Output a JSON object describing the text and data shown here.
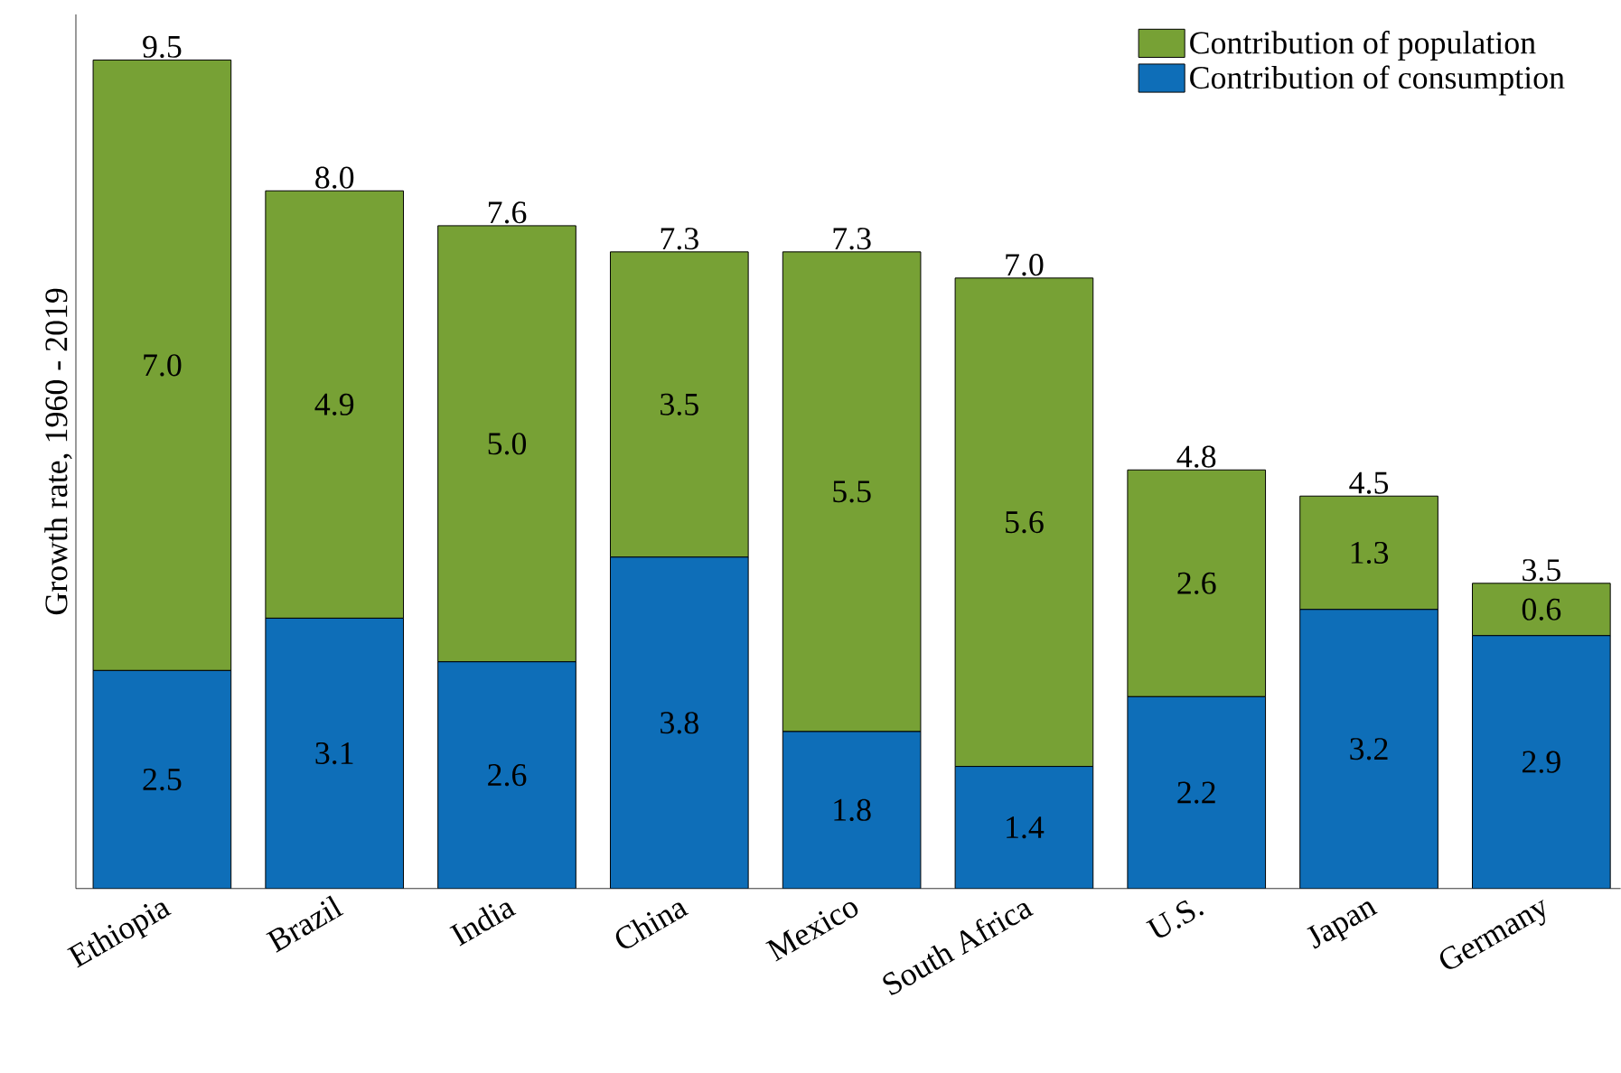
{
  "chart_data": {
    "type": "bar",
    "stacked": true,
    "ylabel": "Growth rate, 1960 - 2019",
    "categories": [
      "Ethiopia",
      "Brazil",
      "India",
      "China",
      "Mexico",
      "South Africa",
      "U.S.",
      "Japan",
      "Germany"
    ],
    "series": [
      {
        "name": "Contribution of consumption",
        "color": "#0e6eb8",
        "values": [
          2.5,
          3.1,
          2.6,
          3.8,
          1.8,
          1.4,
          2.2,
          3.2,
          2.9
        ],
        "value_labels": [
          "2.5",
          "3.1",
          "2.6",
          "3.8",
          "1.8",
          "1.4",
          "2.2",
          "3.2",
          "2.9"
        ]
      },
      {
        "name": "Contribution of population",
        "color": "#77a135",
        "values": [
          7.0,
          4.9,
          5.0,
          3.5,
          5.5,
          5.6,
          2.6,
          1.3,
          0.6
        ],
        "value_labels": [
          "7.0",
          "4.9",
          "5.0",
          "3.5",
          "5.5",
          "5.6",
          "2.6",
          "1.3",
          "0.6"
        ]
      }
    ],
    "totals": [
      "9.5",
      "8.0",
      "7.6",
      "7.3",
      "7.3",
      "7.0",
      "4.8",
      "4.5",
      "3.5"
    ],
    "tick_labels": "x",
    "legend": "top right"
  }
}
